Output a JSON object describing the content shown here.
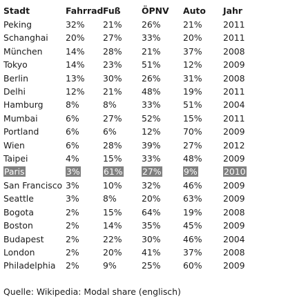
{
  "table": {
    "headers": [
      "Stadt",
      "Fahrrad",
      "Fuß",
      "ÖPNV",
      "Auto",
      "Jahr"
    ],
    "rows": [
      {
        "city": "Peking",
        "bike": "32%",
        "foot": "21%",
        "transit": "26%",
        "car": "21%",
        "year": "2011",
        "highlight": false
      },
      {
        "city": "Schanghai",
        "bike": "20%",
        "foot": "27%",
        "transit": "33%",
        "car": "20%",
        "year": "2011",
        "highlight": false
      },
      {
        "city": "München",
        "bike": "14%",
        "foot": "28%",
        "transit": "21%",
        "car": "37%",
        "year": "2008",
        "highlight": false
      },
      {
        "city": "Tokyo",
        "bike": "14%",
        "foot": "23%",
        "transit": "51%",
        "car": "12%",
        "year": "2009",
        "highlight": false
      },
      {
        "city": "Berlin",
        "bike": "13%",
        "foot": "30%",
        "transit": "26%",
        "car": "31%",
        "year": "2008",
        "highlight": false
      },
      {
        "city": "Delhi",
        "bike": "12%",
        "foot": "21%",
        "transit": "48%",
        "car": "19%",
        "year": "2011",
        "highlight": false
      },
      {
        "city": "Hamburg",
        "bike": "8%",
        "foot": "8%",
        "transit": "33%",
        "car": "51%",
        "year": "2004",
        "highlight": false
      },
      {
        "city": "Mumbai",
        "bike": "6%",
        "foot": "27%",
        "transit": "52%",
        "car": "15%",
        "year": "2011",
        "highlight": false
      },
      {
        "city": "Portland",
        "bike": "6%",
        "foot": "6%",
        "transit": "12%",
        "car": "70%",
        "year": "2009",
        "highlight": false
      },
      {
        "city": "Wien",
        "bike": "6%",
        "foot": "28%",
        "transit": "39%",
        "car": "27%",
        "year": "2012",
        "highlight": false
      },
      {
        "city": "Taipei",
        "bike": "4%",
        "foot": "15%",
        "transit": "33%",
        "car": "48%",
        "year": "2009",
        "highlight": false
      },
      {
        "city": "Paris",
        "bike": "3%",
        "foot": "61%",
        "transit": "27%",
        "car": "9%",
        "year": "2010",
        "highlight": true
      },
      {
        "city": "San Francisco",
        "bike": "3%",
        "foot": "10%",
        "transit": "32%",
        "car": "46%",
        "year": "2009",
        "highlight": false
      },
      {
        "city": "Seattle",
        "bike": "3%",
        "foot": "8%",
        "transit": "20%",
        "car": "63%",
        "year": "2009",
        "highlight": false
      },
      {
        "city": "Bogota",
        "bike": "2%",
        "foot": "15%",
        "transit": "64%",
        "car": "19%",
        "year": "2008",
        "highlight": false
      },
      {
        "city": "Boston",
        "bike": "2%",
        "foot": "14%",
        "transit": "35%",
        "car": "45%",
        "year": "2009",
        "highlight": false
      },
      {
        "city": "Budapest",
        "bike": "2%",
        "foot": "22%",
        "transit": "30%",
        "car": "46%",
        "year": "2004",
        "highlight": false
      },
      {
        "city": "London",
        "bike": "2%",
        "foot": "20%",
        "transit": "41%",
        "car": "37%",
        "year": "2008",
        "highlight": false
      },
      {
        "city": "Philadelphia",
        "bike": "2%",
        "foot": "9%",
        "transit": "25%",
        "car": "60%",
        "year": "2009",
        "highlight": false
      }
    ]
  },
  "source": "Quelle: Wikipedia: Modal share (englisch)",
  "colors": {
    "highlight_bg": "#808080",
    "highlight_text": "#ffffff",
    "text": "#1a1a1a"
  }
}
